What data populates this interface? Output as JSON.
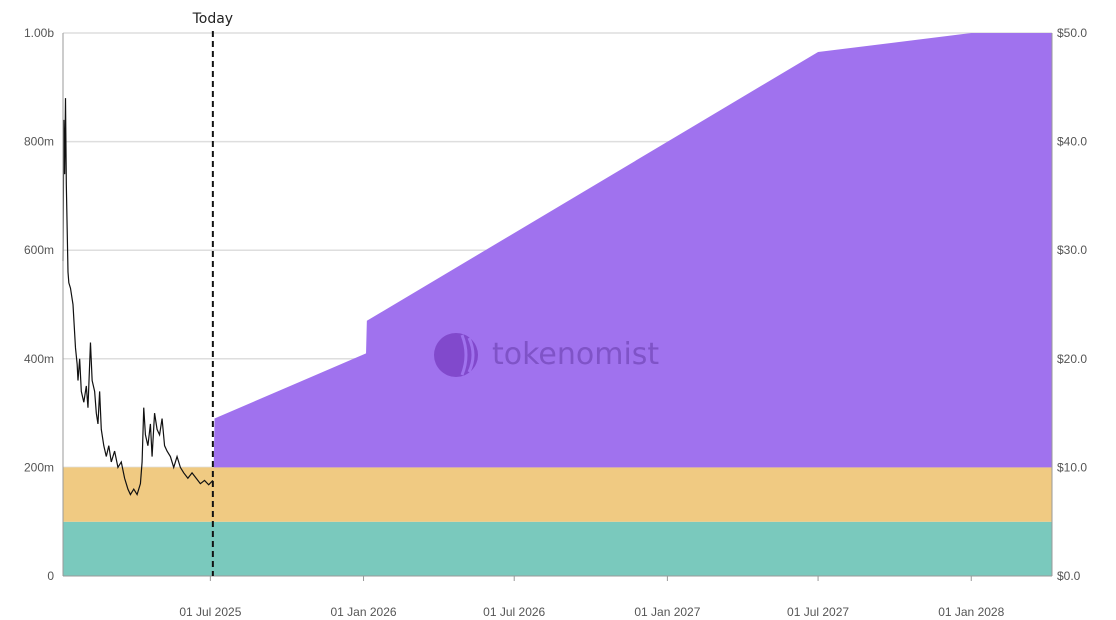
{
  "chart_data": {
    "type": "area",
    "left_axis": {
      "min": 0,
      "max": 1000000000,
      "ticks": [
        0,
        200000000,
        400000000,
        600000000,
        800000000,
        1000000000
      ],
      "labels": [
        "0",
        "200m",
        "400m",
        "600m",
        "800m",
        "1.00b"
      ]
    },
    "right_axis": {
      "min": 0,
      "max": 50,
      "ticks": [
        0,
        10,
        20,
        30,
        40,
        50
      ],
      "labels": [
        "$0.0",
        "$10.0",
        "$20.0",
        "$30.0",
        "$40.0",
        "$50.0"
      ]
    },
    "x_axis": {
      "start": "2025-01-05",
      "end": "2028-04-07",
      "ticks": [
        "2025-07-01",
        "2026-01-01",
        "2026-07-01",
        "2027-01-01",
        "2027-07-01",
        "2028-01-01"
      ],
      "labels": [
        "01 Jul 2025",
        "01 Jan 2026",
        "01 Jul 2026",
        "01 Jan 2027",
        "01 Jul 2027",
        "01 Jan 2028"
      ]
    },
    "today": {
      "date": "2025-07-04",
      "label": "Today"
    },
    "series": [
      {
        "color": "#7ac9bd",
        "points": [
          [
            "2025-01-05",
            100000000
          ],
          [
            "2028-04-07",
            100000000
          ]
        ]
      },
      {
        "color": "#f0ca82",
        "points": [
          [
            "2025-01-05",
            100000000
          ],
          [
            "2028-04-07",
            100000000
          ]
        ]
      },
      {
        "color": "#a072ee",
        "points": [
          [
            "2025-07-04",
            0
          ],
          [
            "2025-07-05",
            0
          ],
          [
            "2025-07-06",
            90000000
          ],
          [
            "2026-01-04",
            210000000
          ],
          [
            "2026-01-05",
            270000000
          ],
          [
            "2027-07-01",
            765000000
          ],
          [
            "2028-01-01",
            800000000
          ],
          [
            "2028-04-07",
            800000000
          ]
        ]
      }
    ],
    "price_series": {
      "color": "#111111",
      "points": [
        [
          "2025-01-05",
          29.0
        ],
        [
          "2025-01-06",
          42.0
        ],
        [
          "2025-01-07",
          37.0
        ],
        [
          "2025-01-08",
          44.0
        ],
        [
          "2025-01-09",
          36.0
        ],
        [
          "2025-01-10",
          32.0
        ],
        [
          "2025-01-11",
          28.0
        ],
        [
          "2025-01-12",
          27.0
        ],
        [
          "2025-01-14",
          26.5
        ],
        [
          "2025-01-17",
          25.0
        ],
        [
          "2025-01-20",
          21.0
        ],
        [
          "2025-01-22",
          19.5
        ],
        [
          "2025-01-23",
          18.0
        ],
        [
          "2025-01-25",
          20.0
        ],
        [
          "2025-01-27",
          17.0
        ],
        [
          "2025-01-30",
          16.0
        ],
        [
          "2025-02-02",
          17.5
        ],
        [
          "2025-02-04",
          15.5
        ],
        [
          "2025-02-07",
          21.5
        ],
        [
          "2025-02-09",
          18.0
        ],
        [
          "2025-02-12",
          17.0
        ],
        [
          "2025-02-14",
          15.0
        ],
        [
          "2025-02-16",
          14.0
        ],
        [
          "2025-02-18",
          17.0
        ],
        [
          "2025-02-20",
          13.5
        ],
        [
          "2025-02-23",
          12.0
        ],
        [
          "2025-02-26",
          11.0
        ],
        [
          "2025-03-01",
          12.0
        ],
        [
          "2025-03-04",
          10.5
        ],
        [
          "2025-03-08",
          11.5
        ],
        [
          "2025-03-12",
          10.0
        ],
        [
          "2025-03-16",
          10.5
        ],
        [
          "2025-03-20",
          9.0
        ],
        [
          "2025-03-24",
          8.0
        ],
        [
          "2025-03-27",
          7.5
        ],
        [
          "2025-03-31",
          8.0
        ],
        [
          "2025-04-04",
          7.5
        ],
        [
          "2025-04-08",
          8.5
        ],
        [
          "2025-04-10",
          10.5
        ],
        [
          "2025-04-12",
          15.5
        ],
        [
          "2025-04-14",
          13.0
        ],
        [
          "2025-04-17",
          12.0
        ],
        [
          "2025-04-20",
          14.0
        ],
        [
          "2025-04-22",
          11.0
        ],
        [
          "2025-04-25",
          15.0
        ],
        [
          "2025-04-28",
          13.5
        ],
        [
          "2025-05-01",
          13.0
        ],
        [
          "2025-05-04",
          14.5
        ],
        [
          "2025-05-07",
          12.0
        ],
        [
          "2025-05-10",
          11.5
        ],
        [
          "2025-05-14",
          11.0
        ],
        [
          "2025-05-18",
          10.0
        ],
        [
          "2025-05-22",
          11.0
        ],
        [
          "2025-05-26",
          10.0
        ],
        [
          "2025-05-30",
          9.5
        ],
        [
          "2025-06-04",
          9.0
        ],
        [
          "2025-06-09",
          9.5
        ],
        [
          "2025-06-14",
          9.0
        ],
        [
          "2025-06-19",
          8.5
        ],
        [
          "2025-06-24",
          8.8
        ],
        [
          "2025-06-29",
          8.4
        ],
        [
          "2025-07-04",
          8.8
        ]
      ]
    }
  },
  "watermark": {
    "text": "tokenomist"
  }
}
